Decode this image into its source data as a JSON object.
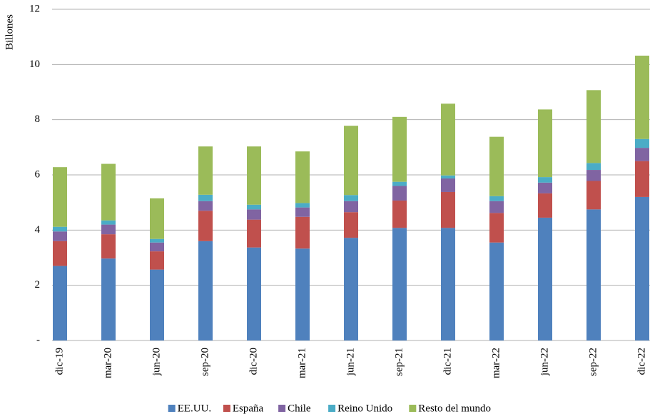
{
  "chart_data": {
    "type": "stacked_bar",
    "y_label": "Billones",
    "categories": [
      "dic-19",
      "mar-20",
      "jun-20",
      "sep-20",
      "dic-20",
      "mar-21",
      "jun-21",
      "sep-21",
      "dic-21",
      "mar-22",
      "jun-22",
      "sep-22",
      "dic-22"
    ],
    "series": [
      {
        "name": "EE.UU.",
        "color": "#4f81bd",
        "values": [
          2.7,
          2.97,
          2.57,
          3.6,
          3.37,
          3.33,
          3.72,
          4.08,
          4.08,
          3.55,
          4.45,
          4.75,
          5.2
        ]
      },
      {
        "name": "España",
        "color": "#c0504d",
        "values": [
          0.9,
          0.88,
          0.66,
          1.1,
          1.01,
          1.15,
          0.93,
          0.99,
          1.3,
          1.07,
          0.88,
          1.03,
          1.3
        ]
      },
      {
        "name": "Chile",
        "color": "#8064a2",
        "values": [
          0.35,
          0.35,
          0.32,
          0.35,
          0.37,
          0.34,
          0.4,
          0.53,
          0.49,
          0.43,
          0.39,
          0.4,
          0.48
        ]
      },
      {
        "name": "Reino Unido",
        "color": "#4bacc6",
        "values": [
          0.17,
          0.15,
          0.13,
          0.23,
          0.17,
          0.16,
          0.22,
          0.15,
          0.11,
          0.18,
          0.2,
          0.25,
          0.32
        ]
      },
      {
        "name": "Resto del mundo",
        "color": "#9bbb59",
        "values": [
          2.16,
          2.05,
          1.47,
          1.75,
          2.11,
          1.87,
          2.51,
          2.35,
          2.6,
          2.15,
          2.45,
          2.64,
          3.02
        ]
      }
    ],
    "ylim": [
      0,
      12
    ],
    "yticks": [
      {
        "value": 0,
        "label": "-"
      },
      2,
      4,
      6,
      8,
      10,
      12
    ],
    "grid": true,
    "legend": "bottom"
  }
}
